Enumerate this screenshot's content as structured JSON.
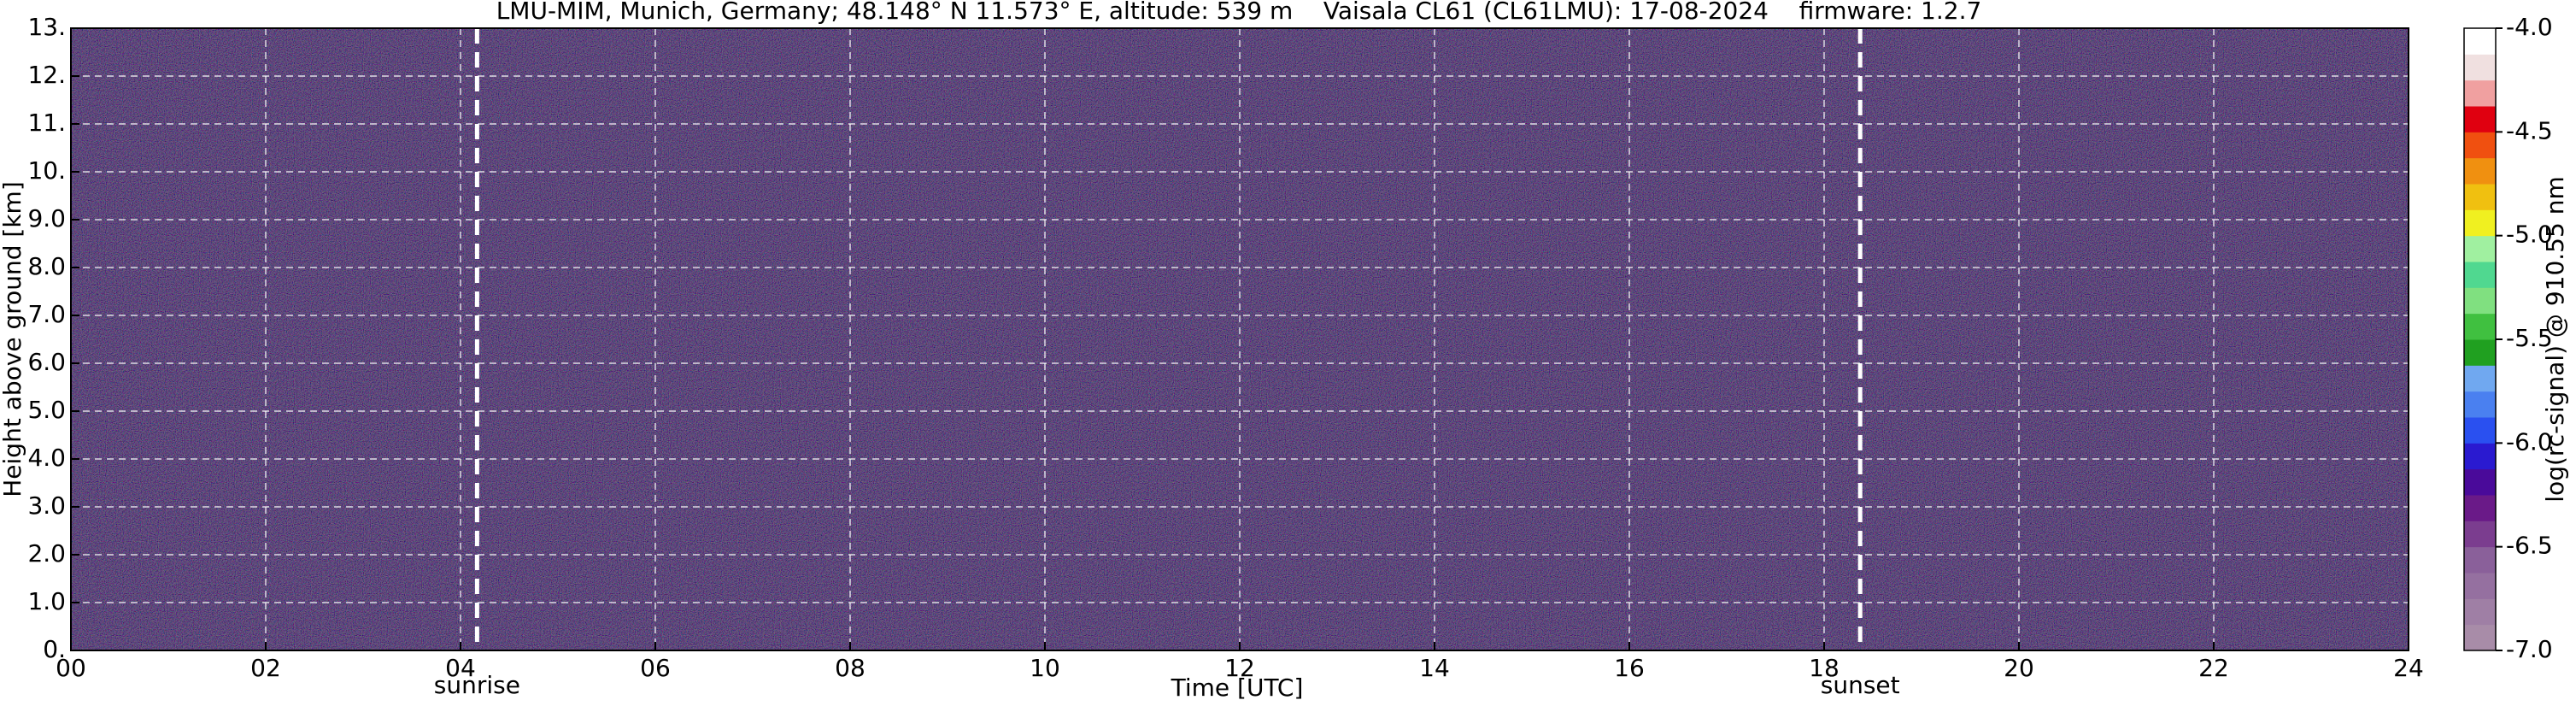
{
  "chart_data": {
    "type": "heatmap",
    "title": "LMU-MIM, Munich, Germany; 48.148° N 11.573° E, altitude: 539 m    Vaisala CL61 (CL61LMU): 17-08-2024    firmware: 1.2.7",
    "x_label": "Time [UTC]",
    "y_label": "Height above ground [km]",
    "xlim": [
      0,
      24
    ],
    "xticks": [
      {
        "value": 0,
        "label": "00"
      },
      {
        "value": 2,
        "label": "02"
      },
      {
        "value": 4,
        "label": "04"
      },
      {
        "value": 6,
        "label": "06"
      },
      {
        "value": 8,
        "label": "08"
      },
      10,
      12,
      14,
      16,
      18,
      20,
      22,
      24
    ],
    "ylim": [
      0,
      13
    ],
    "yticks": [
      {
        "value": 0,
        "label": "0."
      },
      {
        "value": 1,
        "label": "1.0"
      },
      {
        "value": 2,
        "label": "2.0"
      },
      {
        "value": 3,
        "label": "3.0"
      },
      {
        "value": 4,
        "label": "4.0"
      },
      {
        "value": 5,
        "label": "5.0"
      },
      {
        "value": 6,
        "label": "6.0"
      },
      {
        "value": 7,
        "label": "7.0"
      },
      {
        "value": 8,
        "label": "8.0"
      },
      {
        "value": 9,
        "label": "9.0"
      },
      {
        "value": 10,
        "label": "10."
      },
      {
        "value": 11,
        "label": "11."
      },
      {
        "value": 12,
        "label": "12."
      },
      {
        "value": 13,
        "label": "13."
      }
    ],
    "grid": true,
    "annotations": [
      {
        "label": "sunrise",
        "x": 4.17
      },
      {
        "label": "sunset",
        "x": 18.37
      }
    ],
    "colorbar": {
      "label": "log(rc-signal) @ 910.55 nm",
      "lim": [
        -7,
        -4
      ],
      "ticks": [
        {
          "value": -4,
          "label": "-4.0"
        },
        -4.5,
        {
          "value": -5,
          "label": "-5.0"
        },
        -5.5,
        {
          "value": -6,
          "label": "-6.0"
        },
        -6.5,
        {
          "value": -7,
          "label": "-7.0"
        }
      ],
      "colors": [
        "#a88ca8",
        "#9f7fa5",
        "#9570a0",
        "#8a609a",
        "#7b3d8f",
        "#6a1a88",
        "#4a0a9a",
        "#2a1ad0",
        "#2a50f0",
        "#4a80f0",
        "#70a8f0",
        "#20a020",
        "#40c040",
        "#80e080",
        "#50d890",
        "#a0f0a0",
        "#f0f020",
        "#f0c010",
        "#f09010",
        "#f05010",
        "#e00010",
        "#f0a0a0",
        "#f0e0e0",
        "#ffffff"
      ]
    }
  }
}
